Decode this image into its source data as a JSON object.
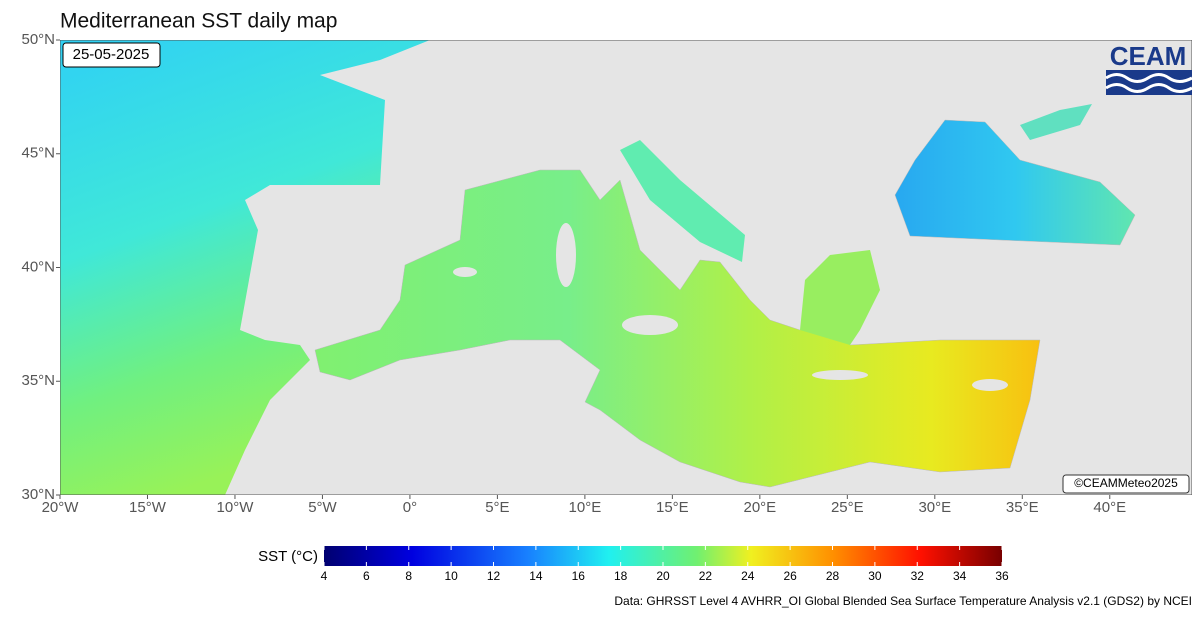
{
  "map": {
    "title": "Mediterranean SST daily map",
    "date": "25-05-2025",
    "logo": "CEAM",
    "credit": "©CEAMMeteo2025",
    "source": "Data: GHRSST Level 4 AVHRR_OI Global Blended Sea Surface Temperature Analysis v2.1 (GDS2) by NCEI",
    "xlim": [
      -20,
      44.7
    ],
    "ylim": [
      30,
      50
    ],
    "xticks": [
      {
        "value": -20,
        "label": "20°W"
      },
      {
        "value": -15,
        "label": "15°W"
      },
      {
        "value": -10,
        "label": "10°W"
      },
      {
        "value": -5,
        "label": "5°W"
      },
      {
        "value": 0,
        "label": "0°"
      },
      {
        "value": 5,
        "label": "5°E"
      },
      {
        "value": 10,
        "label": "10°E"
      },
      {
        "value": 15,
        "label": "15°E"
      },
      {
        "value": 20,
        "label": "20°E"
      },
      {
        "value": 25,
        "label": "25°E"
      },
      {
        "value": 30,
        "label": "30°E"
      },
      {
        "value": 35,
        "label": "35°E"
      },
      {
        "value": 40,
        "label": "40°E"
      }
    ],
    "yticks": [
      {
        "value": 30,
        "label": "30°N"
      },
      {
        "value": 35,
        "label": "35°N"
      },
      {
        "value": 40,
        "label": "40°N"
      },
      {
        "value": 45,
        "label": "45°N"
      },
      {
        "value": 50,
        "label": "50°N"
      }
    ],
    "colorbar": {
      "title": "SST (°C)",
      "lim": [
        4,
        36
      ],
      "ticks": [
        4,
        6,
        8,
        10,
        12,
        14,
        16,
        18,
        20,
        22,
        24,
        26,
        28,
        30,
        32,
        34,
        36
      ]
    }
  }
}
